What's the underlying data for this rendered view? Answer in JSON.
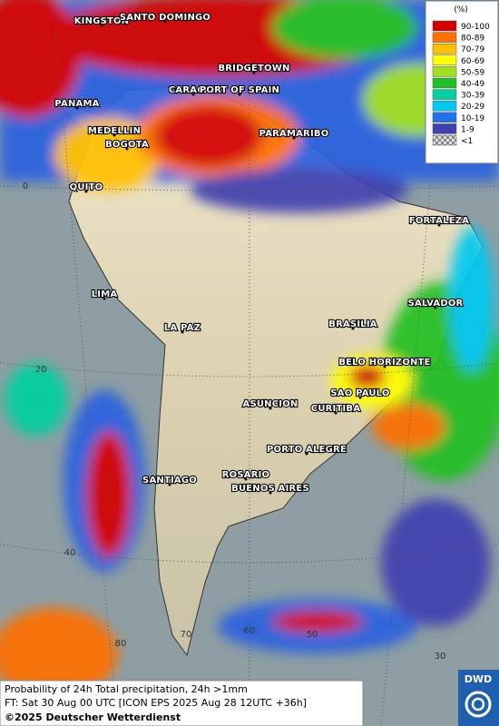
{
  "cities": [
    "KINGSTON",
    "SANTO DOMINGO",
    "BRIDGETOWN",
    "CARACAS",
    "PORT OF SPAIN",
    "PANAMA",
    "MEDELLIN",
    "BOGOTA",
    "PARAMARIBO",
    "QUITO",
    "FORTALEZA",
    "LIMA",
    "SALVADOR",
    "BRASILIA",
    "LA PAZ",
    "BELO HORIZONTE",
    "SAO PAULO",
    "ASUNCION",
    "CURITIBA",
    "PORTO ALEGRE",
    "ROSARIO",
    "BUENOS AIRES",
    "SANTIAGO"
  ],
  "graticule_labels": [
    "0",
    "20",
    "40",
    "60",
    "50",
    "70",
    "80",
    "30"
  ],
  "legend": {
    "unit": "(%)",
    "items": [
      {
        "label": "90-100",
        "color": "#d40000"
      },
      {
        "label": "80-89",
        "color": "#ff7000"
      },
      {
        "label": "70-79",
        "color": "#ffc000"
      },
      {
        "label": "60-69",
        "color": "#ffff00"
      },
      {
        "label": "50-59",
        "color": "#a0e020"
      },
      {
        "label": "40-49",
        "color": "#20c020"
      },
      {
        "label": "30-39",
        "color": "#00d0a0"
      },
      {
        "label": "20-29",
        "color": "#00c8f0"
      },
      {
        "label": "10-19",
        "color": "#2070f0"
      },
      {
        "label": "1-9",
        "color": "#4040b0"
      },
      {
        "label": "<1",
        "color": "#aaaaaa"
      }
    ]
  },
  "caption": {
    "line1": "Probability of 24h Total precipitation, 24h >1mm",
    "line2": "FT: Sat 30 Aug 00 UTC [ICON EPS 2025 Aug 28 12UTC +36h]",
    "line3": "©2025 Deutscher Wetterdienst"
  },
  "logo": "DWD"
}
